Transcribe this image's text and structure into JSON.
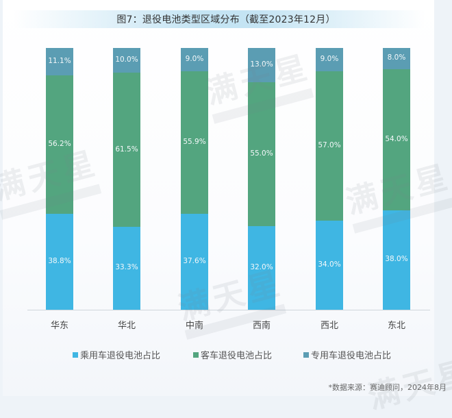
{
  "title": "图7：退役电池类型区域分布（截至2023年12月）",
  "chart_data": {
    "type": "bar",
    "stacked": true,
    "normalized": true,
    "title": "图7：退役电池类型区域分布（截至2023年12月）",
    "xlabel": "",
    "ylabel": "",
    "categories": [
      "华东",
      "华北",
      "中南",
      "西南",
      "西北",
      "东北"
    ],
    "series": [
      {
        "name": "乘用车退役电池占比",
        "color": "#3fb6e3",
        "values": [
          38.8,
          33.3,
          37.6,
          32.0,
          34.0,
          38.0
        ],
        "labels": [
          "38.8%",
          "33.3%",
          "37.6%",
          "32.0%",
          "34.0%",
          "38.0%"
        ]
      },
      {
        "name": "客车退役电池占比",
        "color": "#53a57f",
        "values": [
          56.2,
          61.5,
          55.9,
          55.0,
          57.0,
          54.0
        ],
        "labels": [
          "56.2%",
          "61.5%",
          "55.9%",
          "55.0%",
          "57.0%",
          "54.0%"
        ]
      },
      {
        "name": "专用车退役电池占比",
        "color": "#5b9db3",
        "values": [
          11.1,
          10.0,
          9.0,
          13.0,
          9.0,
          8.0
        ],
        "labels": [
          "11.1%",
          "10.0%",
          "9.0%",
          "13.0%",
          "9.0%",
          "8.0%"
        ]
      }
    ],
    "legend_position": "bottom",
    "grid": false
  },
  "legend": [
    {
      "label": "乘用车退役电池占比",
      "color": "#3fb6e3"
    },
    {
      "label": "客车退役电池占比",
      "color": "#53a57f"
    },
    {
      "label": "专用车退役电池占比",
      "color": "#5b9db3"
    }
  ],
  "source": "*数据来源：赛迪顾问，2024年8月",
  "watermark": "满天星"
}
